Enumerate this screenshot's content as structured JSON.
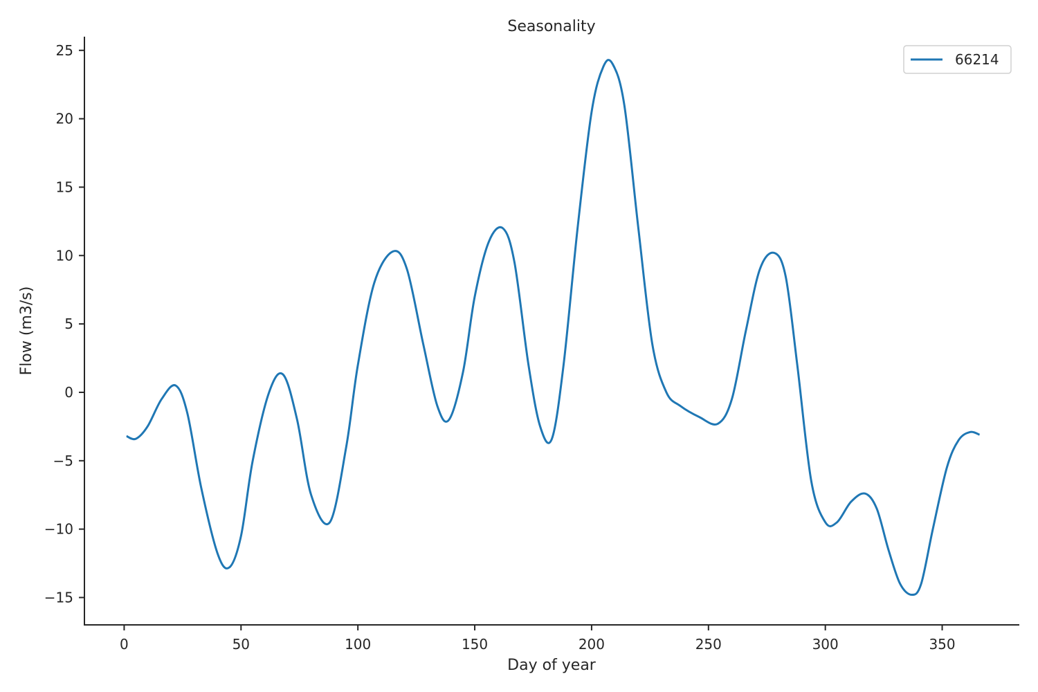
{
  "chart_data": {
    "type": "line",
    "title": "Seasonality",
    "xlabel": "Day of year",
    "ylabel": "Flow (m3/s)",
    "xlim": [
      -17,
      383
    ],
    "ylim": [
      -17,
      26
    ],
    "xticks": [
      0,
      50,
      100,
      150,
      200,
      250,
      300,
      350
    ],
    "yticks": [
      25,
      20,
      15,
      10,
      5,
      0,
      -5,
      -10,
      -15
    ],
    "grid": false,
    "legend_position": "top-right",
    "series": [
      {
        "name": "66214",
        "color": "#1f77b4",
        "x": [
          1,
          5,
          10,
          16,
          22,
          27,
          33,
          40,
          45,
          50,
          55,
          62,
          68,
          74,
          80,
          88,
          95,
          100,
          107,
          115,
          121,
          128,
          134,
          139,
          145,
          150,
          156,
          162,
          167,
          173,
          178,
          183,
          188,
          194,
          200,
          205,
          209,
          214,
          220,
          226,
          232,
          238,
          246,
          254,
          260,
          266,
          272,
          278,
          283,
          288,
          294,
          300,
          305,
          311,
          317,
          322,
          327,
          332,
          337,
          341,
          346,
          352,
          357,
          362,
          366
        ],
        "y": [
          -3.2,
          -3.4,
          -2.5,
          -0.5,
          0.5,
          -1.5,
          -7.0,
          -11.8,
          -12.8,
          -10.5,
          -5.0,
          0.0,
          1.3,
          -2.0,
          -7.5,
          -9.5,
          -4.0,
          2.0,
          8.0,
          10.3,
          9.0,
          3.5,
          -1.0,
          -2.0,
          1.5,
          7.0,
          11.0,
          12.0,
          9.5,
          2.0,
          -2.5,
          -3.4,
          2.0,
          12.0,
          20.5,
          23.8,
          24.0,
          21.0,
          12.0,
          3.5,
          0.0,
          -1.0,
          -1.8,
          -2.3,
          -0.5,
          4.5,
          9.0,
          10.2,
          8.5,
          2.0,
          -6.5,
          -9.5,
          -9.5,
          -8.0,
          -7.4,
          -8.5,
          -11.5,
          -14.0,
          -14.8,
          -14.0,
          -10.0,
          -5.5,
          -3.5,
          -2.9,
          -3.1
        ]
      }
    ]
  }
}
